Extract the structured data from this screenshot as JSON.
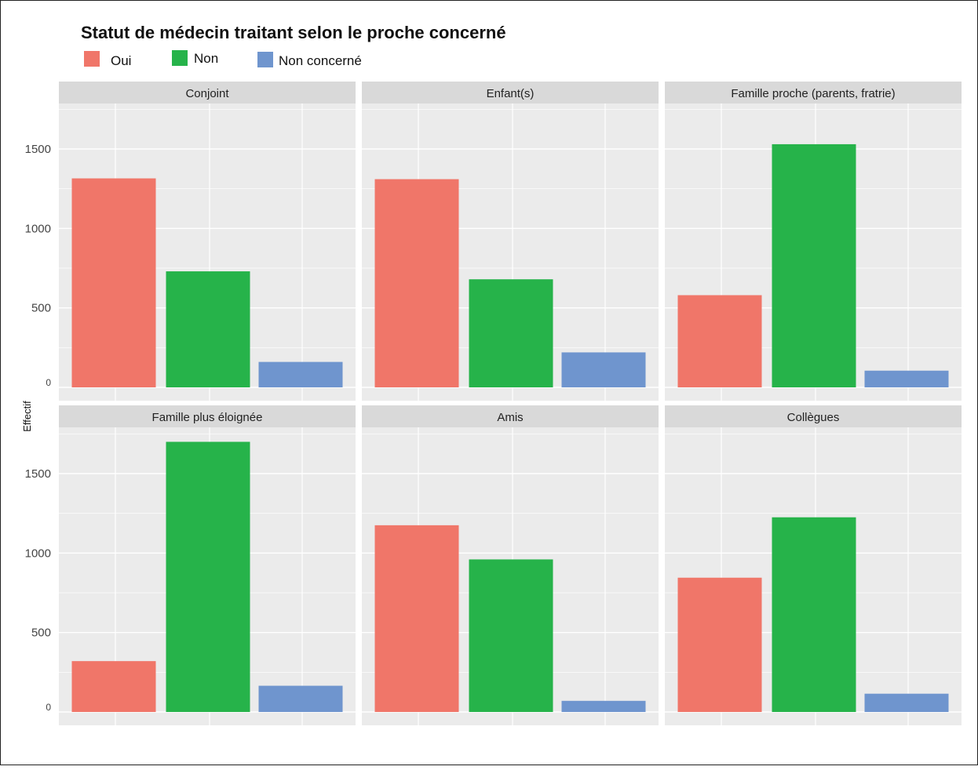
{
  "chart_data": {
    "type": "bar",
    "title": "Statut de médecin traitant selon le proche concerné",
    "ylabel": "Effectif",
    "xlabel": "",
    "ylim": [
      0,
      1750
    ],
    "yticks": [
      0,
      500,
      1000,
      1500
    ],
    "ytick_labels": [
      "0",
      "500",
      "1000",
      "1500"
    ],
    "legend_position": "top-left",
    "grid": true,
    "facet_layout": "2 rows x 3 columns",
    "categories": [
      "Oui",
      "Non",
      "Non concerné"
    ],
    "series": [
      {
        "name": "Oui",
        "color": "#F07669"
      },
      {
        "name": "Non",
        "color": "#26B34A"
      },
      {
        "name": "Non concerné",
        "color": "#6F95CE"
      }
    ],
    "facets": [
      {
        "label": "Conjoint",
        "values": [
          1315,
          730,
          160
        ]
      },
      {
        "label": "Enfant(s)",
        "values": [
          1310,
          680,
          220
        ]
      },
      {
        "label": "Famille proche (parents, fratrie)",
        "values": [
          580,
          1530,
          105
        ]
      },
      {
        "label": "Famille plus éloignée",
        "values": [
          320,
          1700,
          165
        ]
      },
      {
        "label": "Amis",
        "values": [
          1175,
          960,
          70
        ]
      },
      {
        "label": "Collègues",
        "values": [
          845,
          1225,
          115
        ]
      }
    ]
  }
}
